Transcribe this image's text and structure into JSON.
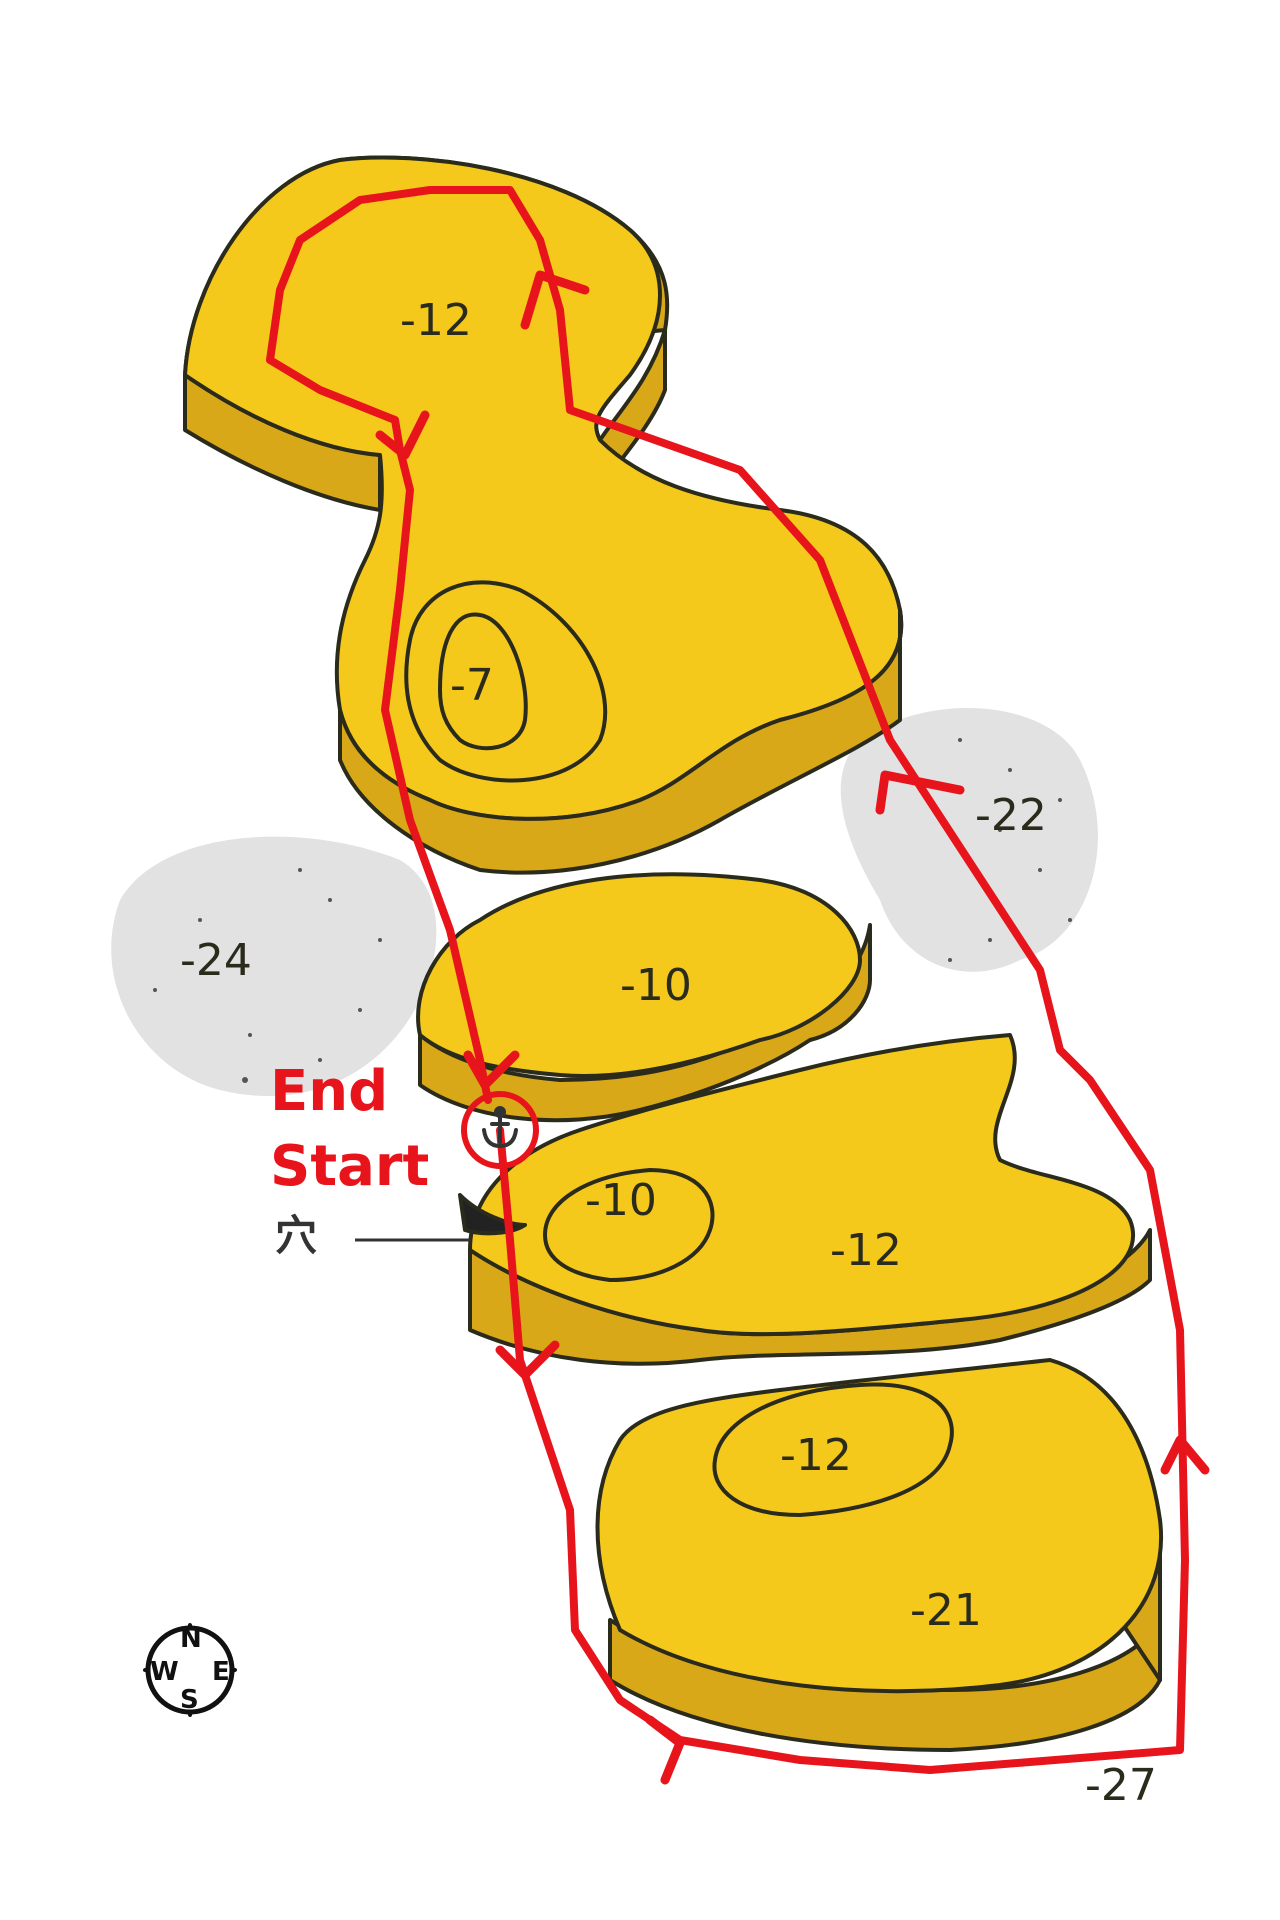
{
  "depths": {
    "north_reef": "-12",
    "pinnacle": "-7",
    "sand_east": "-22",
    "sand_west": "-24",
    "middle_reef": "-10",
    "small_reef": "-10",
    "east_reef": "-12",
    "south_patch": "-12",
    "south_reef": "-21",
    "southeast": "-27"
  },
  "route": {
    "end_label": "End",
    "start_label": "Start"
  },
  "hole_label": "穴",
  "compass": {
    "n": "N",
    "e": "E",
    "s": "S",
    "w": "W"
  },
  "colors": {
    "reef_top": "#f5c91c",
    "reef_side": "#d9a818",
    "outline": "#2b2b1c",
    "sand": "#e2e2e2",
    "route": "#e8141b"
  },
  "icons": [
    "anchor-icon",
    "compass-icon",
    "direction-arrow-icon"
  ]
}
